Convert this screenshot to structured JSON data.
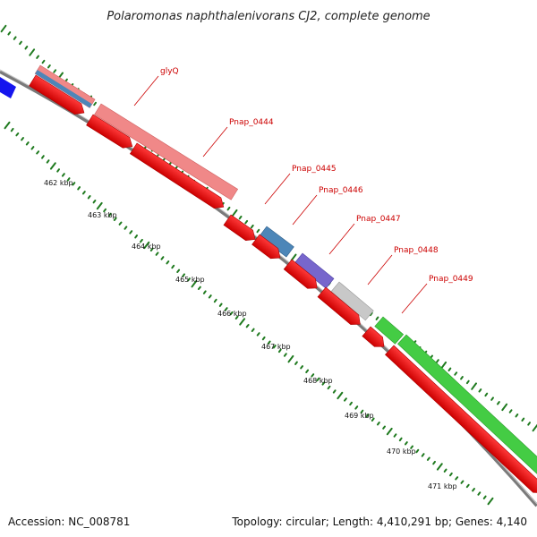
{
  "title": "Polaromonas naphthalenivorans CJ2, complete genome",
  "footer": {
    "accession": "Accession: NC_008781",
    "summary": "Topology: circular; Length: 4,410,291 bp; Genes: 4,140"
  },
  "gene_labels": [
    "glyQ",
    "Pnap_0444",
    "Pnap_0445",
    "Pnap_0446",
    "Pnap_0447",
    "Pnap_0448",
    "Pnap_0449"
  ],
  "kbp_labels": [
    "462 kbp",
    "463 kbp",
    "464 kbp",
    "465 kbp",
    "466 kbp",
    "467 kbp",
    "468 kbp",
    "469 kbp",
    "470 kbp",
    "471 kbp"
  ],
  "colors": {
    "cds_forward": "#ff0000",
    "gene": "#f08888",
    "trna": "#4d86b8",
    "misc": "#7766cc",
    "pseudo": "#c8c8c8",
    "green": "#44cc44",
    "upstream": "#1515ee",
    "backbone": "#7a7a7a",
    "ticks": "#1f7a1f",
    "label_text": "#cc0000"
  }
}
